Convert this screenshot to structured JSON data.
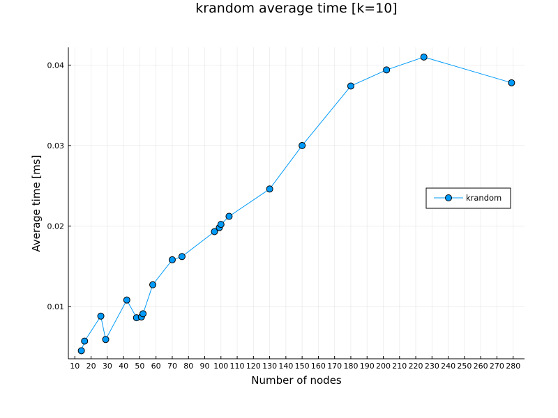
{
  "chart_data": {
    "type": "line",
    "title": "krandom average time [k=10]",
    "xlabel": "Number of nodes",
    "ylabel": "Average time [ms]",
    "xlim": [
      6,
      287
    ],
    "ylim": [
      0.0035,
      0.0422
    ],
    "xticks": [
      10,
      20,
      30,
      40,
      50,
      60,
      70,
      80,
      90,
      100,
      110,
      120,
      130,
      140,
      150,
      160,
      170,
      180,
      190,
      200,
      210,
      220,
      230,
      240,
      250,
      260,
      270,
      280
    ],
    "xtick_labels": [
      "10",
      "20",
      "30",
      "40",
      "50",
      "60",
      "70",
      "80",
      "90",
      "100",
      "110",
      "120",
      "130",
      "140",
      "150",
      "160",
      "170",
      "180",
      "190",
      "200",
      "210",
      "220",
      "230",
      "240",
      "250",
      "260",
      "270",
      "280"
    ],
    "yticks": [
      0.01,
      0.02,
      0.03,
      0.04
    ],
    "ytick_labels": [
      "0.01",
      "0.02",
      "0.03",
      "0.04"
    ],
    "grid": true,
    "legend_position": "right",
    "series": [
      {
        "name": "krandom",
        "color": "#009af9",
        "marker": "circle",
        "x": [
          14,
          16,
          26,
          29,
          42,
          48,
          51,
          52,
          58,
          70,
          76,
          96,
          99,
          100,
          105,
          130,
          150,
          180,
          202,
          225,
          279
        ],
        "y": [
          0.0045,
          0.0057,
          0.0088,
          0.0059,
          0.0108,
          0.0086,
          0.0087,
          0.0091,
          0.0127,
          0.0158,
          0.0162,
          0.0193,
          0.0198,
          0.0202,
          0.0212,
          0.0246,
          0.03,
          0.0374,
          0.0394,
          0.041,
          0.0378
        ]
      }
    ]
  }
}
